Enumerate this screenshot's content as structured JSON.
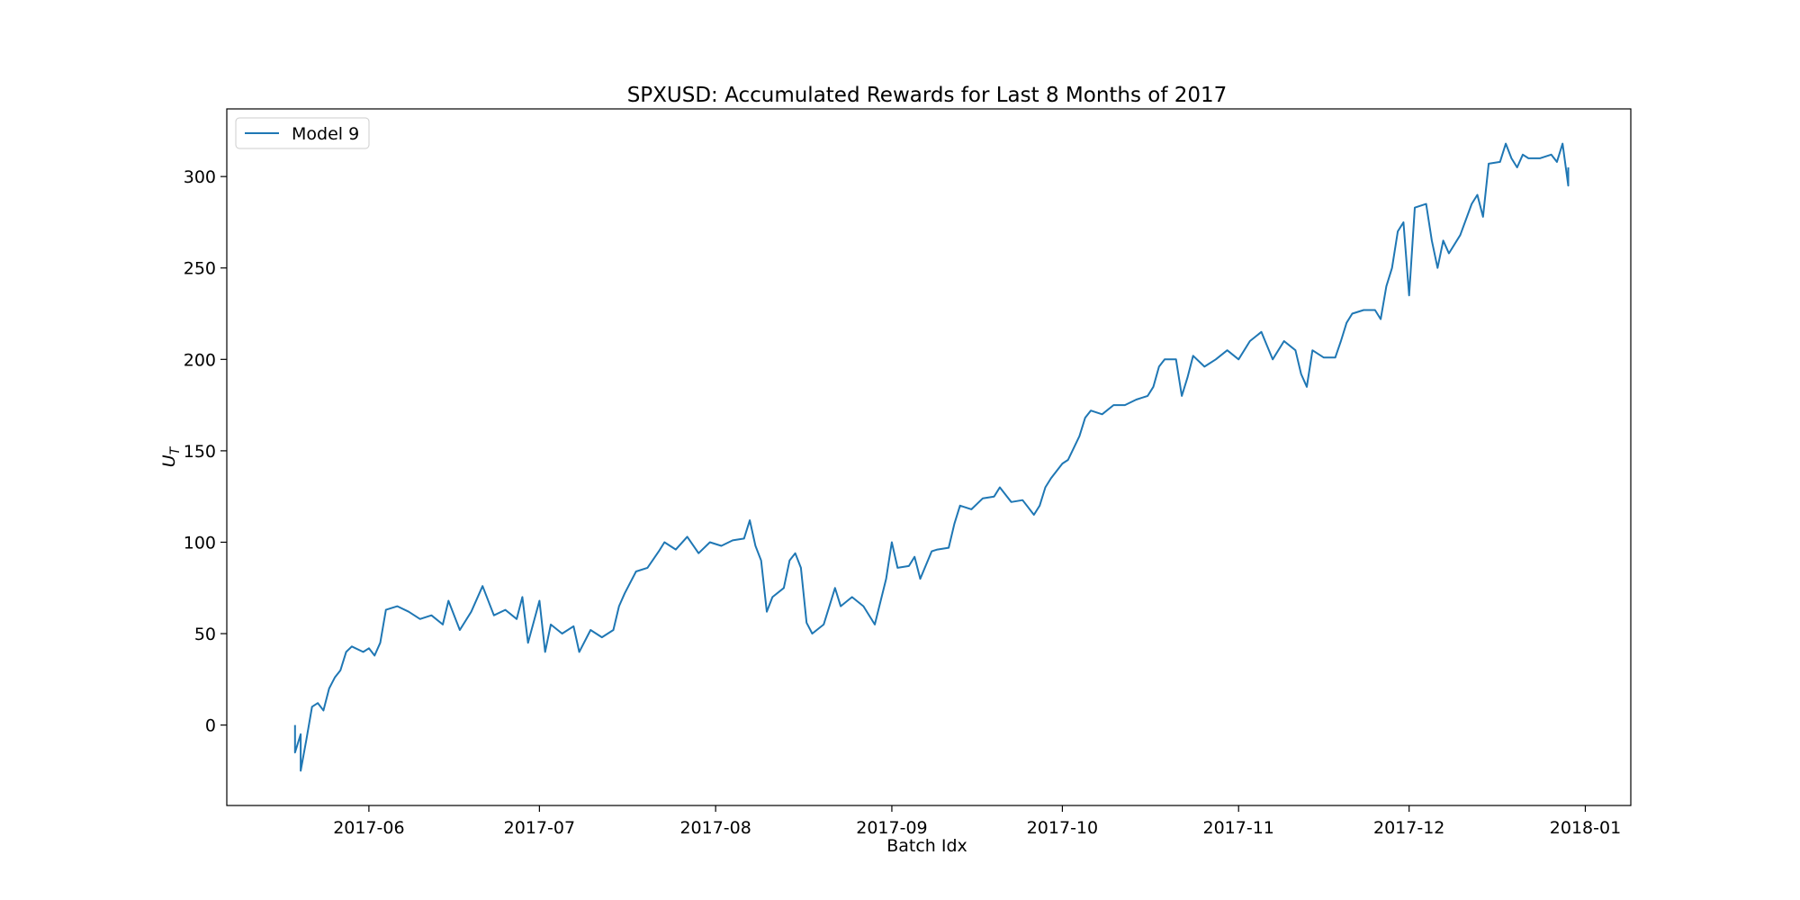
{
  "chart_data": {
    "type": "line",
    "title": "SPXUSD: Accumulated Rewards for Last 8 Months of 2017",
    "xlabel": "Batch Idx",
    "ylabel": "U",
    "ylabel_subscript": "T",
    "x_tick_labels": [
      "2017-06",
      "2017-07",
      "2017-08",
      "2017-09",
      "2017-10",
      "2017-11",
      "2017-12",
      "2018-01"
    ],
    "x_ticks": [
      "2017-06-01",
      "2017-07-01",
      "2017-08-01",
      "2017-09-01",
      "2017-10-01",
      "2017-11-01",
      "2017-12-01",
      "2018-01-01"
    ],
    "xlim": [
      "2017-05-07",
      "2018-01-09"
    ],
    "y_ticks": [
      0,
      50,
      100,
      150,
      200,
      250,
      300
    ],
    "ylim": [
      -44,
      337
    ],
    "grid": false,
    "legend": {
      "placement": "upper-left"
    },
    "series": [
      {
        "name": "Model 9",
        "color": "#1f77b4",
        "points": [
          [
            "2017-05-19",
            0
          ],
          [
            "2017-05-19",
            -15
          ],
          [
            "2017-05-20",
            -5
          ],
          [
            "2017-05-20",
            -25
          ],
          [
            "2017-05-21",
            -8
          ],
          [
            "2017-05-22",
            10
          ],
          [
            "2017-05-23",
            12
          ],
          [
            "2017-05-24",
            8
          ],
          [
            "2017-05-25",
            20
          ],
          [
            "2017-05-26",
            26
          ],
          [
            "2017-05-27",
            30
          ],
          [
            "2017-05-28",
            40
          ],
          [
            "2017-05-29",
            43
          ],
          [
            "2017-05-31",
            40
          ],
          [
            "2017-06-01",
            42
          ],
          [
            "2017-06-02",
            38
          ],
          [
            "2017-06-03",
            45
          ],
          [
            "2017-06-04",
            63
          ],
          [
            "2017-06-06",
            65
          ],
          [
            "2017-06-08",
            62
          ],
          [
            "2017-06-10",
            58
          ],
          [
            "2017-06-12",
            60
          ],
          [
            "2017-06-14",
            55
          ],
          [
            "2017-06-15",
            68
          ],
          [
            "2017-06-17",
            52
          ],
          [
            "2017-06-19",
            62
          ],
          [
            "2017-06-21",
            76
          ],
          [
            "2017-06-23",
            60
          ],
          [
            "2017-06-25",
            63
          ],
          [
            "2017-06-27",
            58
          ],
          [
            "2017-06-28",
            70
          ],
          [
            "2017-06-29",
            45
          ],
          [
            "2017-07-01",
            68
          ],
          [
            "2017-07-02",
            40
          ],
          [
            "2017-07-03",
            55
          ],
          [
            "2017-07-05",
            50
          ],
          [
            "2017-07-07",
            54
          ],
          [
            "2017-07-08",
            40
          ],
          [
            "2017-07-10",
            52
          ],
          [
            "2017-07-12",
            48
          ],
          [
            "2017-07-14",
            52
          ],
          [
            "2017-07-15",
            65
          ],
          [
            "2017-07-16",
            72
          ],
          [
            "2017-07-18",
            84
          ],
          [
            "2017-07-20",
            86
          ],
          [
            "2017-07-22",
            95
          ],
          [
            "2017-07-23",
            100
          ],
          [
            "2017-07-25",
            96
          ],
          [
            "2017-07-27",
            103
          ],
          [
            "2017-07-29",
            94
          ],
          [
            "2017-07-31",
            100
          ],
          [
            "2017-08-02",
            98
          ],
          [
            "2017-08-04",
            101
          ],
          [
            "2017-08-06",
            102
          ],
          [
            "2017-08-07",
            112
          ],
          [
            "2017-08-08",
            98
          ],
          [
            "2017-08-09",
            90
          ],
          [
            "2017-08-10",
            62
          ],
          [
            "2017-08-11",
            70
          ],
          [
            "2017-08-13",
            75
          ],
          [
            "2017-08-14",
            90
          ],
          [
            "2017-08-15",
            94
          ],
          [
            "2017-08-16",
            86
          ],
          [
            "2017-08-17",
            56
          ],
          [
            "2017-08-18",
            50
          ],
          [
            "2017-08-20",
            55
          ],
          [
            "2017-08-22",
            75
          ],
          [
            "2017-08-23",
            65
          ],
          [
            "2017-08-25",
            70
          ],
          [
            "2017-08-27",
            65
          ],
          [
            "2017-08-29",
            55
          ],
          [
            "2017-08-31",
            80
          ],
          [
            "2017-09-01",
            100
          ],
          [
            "2017-09-02",
            86
          ],
          [
            "2017-09-04",
            87
          ],
          [
            "2017-09-05",
            92
          ],
          [
            "2017-09-06",
            80
          ],
          [
            "2017-09-08",
            95
          ],
          [
            "2017-09-09",
            96
          ],
          [
            "2017-09-11",
            97
          ],
          [
            "2017-09-12",
            110
          ],
          [
            "2017-09-13",
            120
          ],
          [
            "2017-09-15",
            118
          ],
          [
            "2017-09-17",
            124
          ],
          [
            "2017-09-19",
            125
          ],
          [
            "2017-09-20",
            130
          ],
          [
            "2017-09-22",
            122
          ],
          [
            "2017-09-24",
            123
          ],
          [
            "2017-09-26",
            115
          ],
          [
            "2017-09-27",
            120
          ],
          [
            "2017-09-28",
            130
          ],
          [
            "2017-09-29",
            135
          ],
          [
            "2017-10-01",
            143
          ],
          [
            "2017-10-02",
            145
          ],
          [
            "2017-10-04",
            158
          ],
          [
            "2017-10-05",
            168
          ],
          [
            "2017-10-06",
            172
          ],
          [
            "2017-10-08",
            170
          ],
          [
            "2017-10-10",
            175
          ],
          [
            "2017-10-12",
            175
          ],
          [
            "2017-10-14",
            178
          ],
          [
            "2017-10-16",
            180
          ],
          [
            "2017-10-17",
            185
          ],
          [
            "2017-10-18",
            196
          ],
          [
            "2017-10-19",
            200
          ],
          [
            "2017-10-21",
            200
          ],
          [
            "2017-10-22",
            180
          ],
          [
            "2017-10-23",
            190
          ],
          [
            "2017-10-24",
            202
          ],
          [
            "2017-10-26",
            196
          ],
          [
            "2017-10-28",
            200
          ],
          [
            "2017-10-30",
            205
          ],
          [
            "2017-11-01",
            200
          ],
          [
            "2017-11-03",
            210
          ],
          [
            "2017-11-05",
            215
          ],
          [
            "2017-11-07",
            200
          ],
          [
            "2017-11-09",
            210
          ],
          [
            "2017-11-11",
            205
          ],
          [
            "2017-11-12",
            192
          ],
          [
            "2017-11-13",
            185
          ],
          [
            "2017-11-14",
            205
          ],
          [
            "2017-11-16",
            201
          ],
          [
            "2017-11-18",
            201
          ],
          [
            "2017-11-19",
            210
          ],
          [
            "2017-11-20",
            220
          ],
          [
            "2017-11-21",
            225
          ],
          [
            "2017-11-23",
            227
          ],
          [
            "2017-11-25",
            227
          ],
          [
            "2017-11-26",
            222
          ],
          [
            "2017-11-27",
            240
          ],
          [
            "2017-11-28",
            250
          ],
          [
            "2017-11-29",
            270
          ],
          [
            "2017-11-30",
            275
          ],
          [
            "2017-12-01",
            235
          ],
          [
            "2017-12-02",
            283
          ],
          [
            "2017-12-04",
            285
          ],
          [
            "2017-12-05",
            265
          ],
          [
            "2017-12-06",
            250
          ],
          [
            "2017-12-07",
            265
          ],
          [
            "2017-12-08",
            258
          ],
          [
            "2017-12-10",
            268
          ],
          [
            "2017-12-12",
            285
          ],
          [
            "2017-12-13",
            290
          ],
          [
            "2017-12-14",
            278
          ],
          [
            "2017-12-15",
            307
          ],
          [
            "2017-12-17",
            308
          ],
          [
            "2017-12-18",
            318
          ],
          [
            "2017-12-19",
            310
          ],
          [
            "2017-12-20",
            305
          ],
          [
            "2017-12-21",
            312
          ],
          [
            "2017-12-22",
            310
          ],
          [
            "2017-12-24",
            310
          ],
          [
            "2017-12-26",
            312
          ],
          [
            "2017-12-27",
            308
          ],
          [
            "2017-12-28",
            318
          ],
          [
            "2017-12-29",
            295
          ],
          [
            "2017-12-29",
            305
          ]
        ]
      }
    ]
  }
}
